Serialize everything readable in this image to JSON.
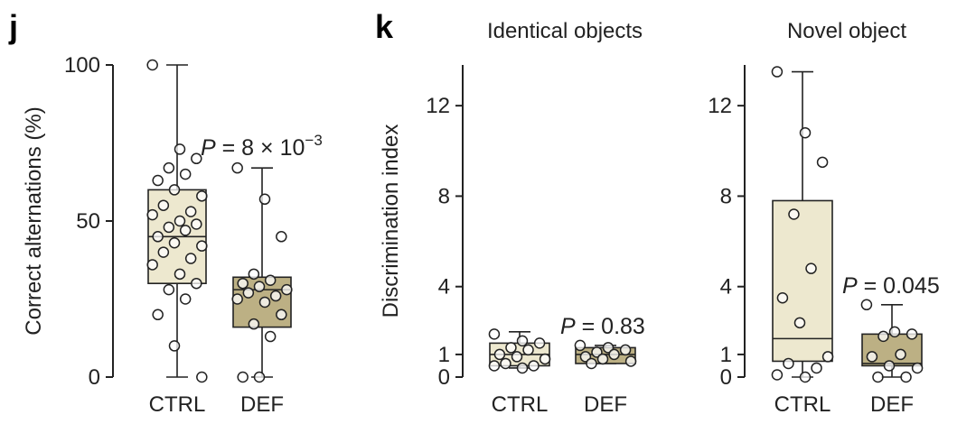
{
  "panels": {
    "j": {
      "letter": "j",
      "p_value": {
        "prefix": "P",
        "text": " = 8 × 10",
        "exp": "−3"
      },
      "chart_data": {
        "type": "box",
        "title": "",
        "ylabel": "Correct alternations (%)",
        "ylim": [
          0,
          100
        ],
        "yticks": [
          0,
          50,
          100
        ],
        "categories": [
          "CTRL",
          "DEF"
        ],
        "series": [
          {
            "name": "CTRL",
            "color": "#ede8cf",
            "whisker_low": 0,
            "q1": 30,
            "median": 45,
            "q3": 60,
            "whisker_high": 100,
            "points": [
              100,
              73,
              70,
              67,
              65,
              63,
              60,
              58,
              55,
              53,
              52,
              50,
              49,
              48,
              47,
              45,
              43,
              42,
              40,
              38,
              36,
              33,
              30,
              28,
              25,
              20,
              10,
              0
            ]
          },
          {
            "name": "DEF",
            "color": "#bcb084",
            "whisker_low": 0,
            "q1": 16,
            "median": 28,
            "q3": 32,
            "whisker_high": 67,
            "points": [
              67,
              57,
              45,
              33,
              31,
              30,
              29,
              28,
              27,
              26,
              25,
              24,
              20,
              17,
              13,
              0,
              0
            ]
          }
        ]
      }
    },
    "k_identical": {
      "letter": "k",
      "p_value": {
        "prefix": "P",
        "text": " = 0.83"
      },
      "chart_data": {
        "type": "box",
        "title": "Identical objects",
        "ylabel": "Discrimination index",
        "ylim": [
          0,
          14
        ],
        "yticks": [
          0,
          1,
          4,
          8,
          12
        ],
        "categories": [
          "CTRL",
          "DEF"
        ],
        "series": [
          {
            "name": "CTRL",
            "color": "#ede8cf",
            "whisker_low": 0.4,
            "q1": 0.5,
            "median": 1.0,
            "q3": 1.5,
            "whisker_high": 2.0,
            "points": [
              1.9,
              1.6,
              1.5,
              1.3,
              1.2,
              1.0,
              0.9,
              0.8,
              0.6,
              0.5,
              0.5,
              0.4
            ]
          },
          {
            "name": "DEF",
            "color": "#bcb084",
            "whisker_low": 0.6,
            "q1": 0.6,
            "median": 1.0,
            "q3": 1.3,
            "whisker_high": 1.4,
            "points": [
              1.4,
              1.3,
              1.2,
              1.1,
              1.0,
              0.9,
              0.8,
              0.7,
              0.6
            ]
          }
        ]
      }
    },
    "k_novel": {
      "p_value": {
        "prefix": "P",
        "text": " = 0.045"
      },
      "chart_data": {
        "type": "box",
        "title": "Novel object",
        "ylabel": "",
        "ylim": [
          0,
          14
        ],
        "yticks": [
          0,
          1,
          4,
          8,
          12
        ],
        "categories": [
          "CTRL",
          "DEF"
        ],
        "series": [
          {
            "name": "CTRL",
            "color": "#ede8cf",
            "whisker_low": 0,
            "q1": 0.7,
            "median": 1.7,
            "q3": 7.8,
            "whisker_high": 13.5,
            "points": [
              13.5,
              10.8,
              9.5,
              7.2,
              4.8,
              3.5,
              2.4,
              0.9,
              0.6,
              0.4,
              0.1,
              0.0
            ]
          },
          {
            "name": "DEF",
            "color": "#bcb084",
            "whisker_low": 0,
            "q1": 0.5,
            "median": 0.6,
            "q3": 1.9,
            "whisker_high": 3.2,
            "points": [
              3.2,
              2.0,
              1.9,
              1.8,
              1.0,
              0.9,
              0.5,
              0.4,
              0.0,
              0.0
            ]
          }
        ]
      }
    }
  }
}
